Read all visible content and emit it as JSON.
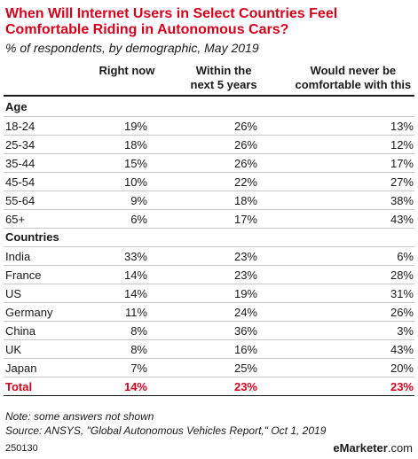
{
  "chart_data": {
    "type": "table",
    "title_lines": [
      "When Will Internet Users in Select Countries Feel",
      "Comfortable Riding in Autonomous Cars?"
    ],
    "subtitle": "% of respondents, by demographic, May 2019",
    "columns": [
      {
        "line1": "Right now",
        "line2": ""
      },
      {
        "line1": "Within the",
        "line2": "next 5 years"
      },
      {
        "line1": "Would never be",
        "line2": "comfortable with this"
      }
    ],
    "sections": [
      {
        "name": "Age",
        "rows": [
          {
            "label": "18-24",
            "values": [
              "19%",
              "26%",
              "13%"
            ]
          },
          {
            "label": "25-34",
            "values": [
              "18%",
              "26%",
              "12%"
            ]
          },
          {
            "label": "35-44",
            "values": [
              "15%",
              "26%",
              "17%"
            ]
          },
          {
            "label": "45-54",
            "values": [
              "10%",
              "22%",
              "27%"
            ]
          },
          {
            "label": "55-64",
            "values": [
              "9%",
              "18%",
              "38%"
            ]
          },
          {
            "label": "65+",
            "values": [
              "6%",
              "17%",
              "43%"
            ]
          }
        ]
      },
      {
        "name": "Countries",
        "rows": [
          {
            "label": "India",
            "values": [
              "33%",
              "23%",
              "6%"
            ]
          },
          {
            "label": "France",
            "values": [
              "14%",
              "23%",
              "28%"
            ]
          },
          {
            "label": "US",
            "values": [
              "14%",
              "19%",
              "31%"
            ]
          },
          {
            "label": "Germany",
            "values": [
              "11%",
              "24%",
              "26%"
            ]
          },
          {
            "label": "China",
            "values": [
              "8%",
              "36%",
              "3%"
            ]
          },
          {
            "label": "UK",
            "values": [
              "8%",
              "16%",
              "43%"
            ]
          },
          {
            "label": "Japan",
            "values": [
              "7%",
              "25%",
              "20%"
            ]
          }
        ]
      }
    ],
    "total": {
      "label": "Total",
      "values": [
        "14%",
        "23%",
        "23%"
      ]
    },
    "accent_color": "#d6001c"
  },
  "notes": {
    "note": "Note: some answers not shown",
    "source": "Source: ANSYS, \"Global Autonomous Vehicles Report,\" Oct 1, 2019"
  },
  "footer": {
    "id": "250130",
    "brand": "eMarketer",
    "brand_suffix": ".com"
  }
}
